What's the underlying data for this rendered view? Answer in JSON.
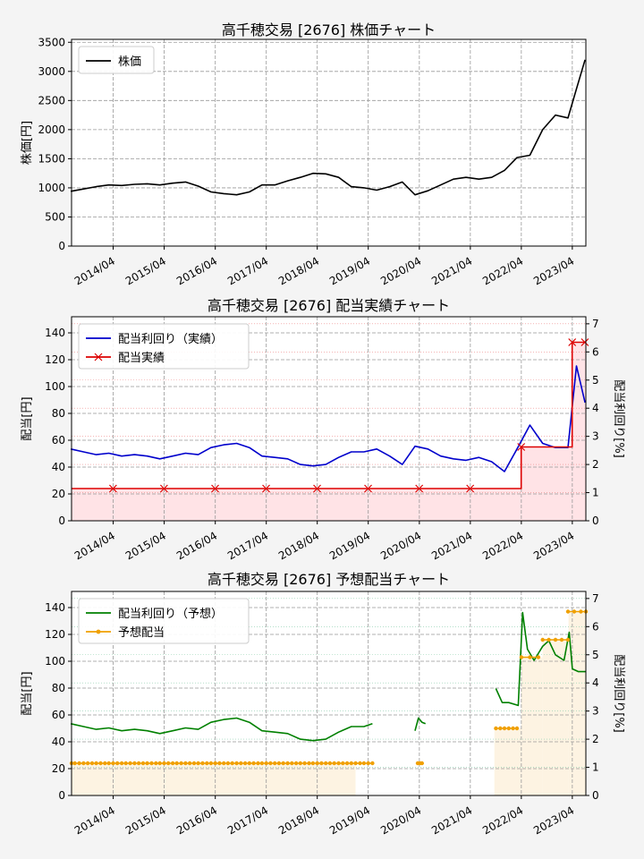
{
  "chart_data": [
    {
      "type": "line",
      "title": "高千穂交易 [2676]  株価チャート",
      "ylabel": "株価[円]",
      "ylim": [
        0,
        3550
      ],
      "yticks": [
        0,
        500,
        1000,
        1500,
        2000,
        2500,
        3000,
        3500
      ],
      "xlim": [
        "2013-06-07",
        "2023-07-07"
      ],
      "xticks": [
        "2014/04",
        "2015/04",
        "2016/04",
        "2017/04",
        "2018/04",
        "2019/04",
        "2020/04",
        "2021/04",
        "2022/04",
        "2023/04"
      ],
      "legend": {
        "position": "top-left",
        "entries": [
          "株価"
        ]
      },
      "grid": true,
      "series": [
        {
          "name": "株価",
          "color": "#000000",
          "x": [
            "2013-06",
            "2013-09",
            "2013-12",
            "2014-03",
            "2014-06",
            "2014-09",
            "2014-12",
            "2015-03",
            "2015-06",
            "2015-09",
            "2015-12",
            "2016-03",
            "2016-06",
            "2016-09",
            "2016-12",
            "2017-03",
            "2017-06",
            "2017-09",
            "2017-12",
            "2018-03",
            "2018-06",
            "2018-09",
            "2018-12",
            "2019-03",
            "2019-06",
            "2019-09",
            "2019-12",
            "2020-03",
            "2020-06",
            "2020-09",
            "2020-12",
            "2021-03",
            "2021-06",
            "2021-09",
            "2021-12",
            "2022-03",
            "2022-06",
            "2022-09",
            "2022-12",
            "2023-03",
            "2023-05",
            "2023-07"
          ],
          "y": [
            940,
            980,
            1020,
            1050,
            1040,
            1060,
            1070,
            1050,
            1080,
            1100,
            1030,
            930,
            900,
            880,
            930,
            1050,
            1050,
            1120,
            1180,
            1250,
            1240,
            1180,
            1020,
            1000,
            960,
            1020,
            1100,
            880,
            950,
            1050,
            1150,
            1180,
            1150,
            1180,
            1300,
            1520,
            1560,
            2000,
            2250,
            2200,
            2700,
            3200
          ]
        }
      ]
    },
    {
      "type": "line",
      "title": "高千穂交易 [2676]  配当実績チャート",
      "ylabel": "配当[円]",
      "y2label": "配当利回り[%]",
      "ylim": [
        0,
        152
      ],
      "yticks": [
        0,
        20,
        40,
        60,
        80,
        100,
        120,
        140
      ],
      "y2lim": [
        0,
        7.25
      ],
      "y2ticks": [
        0,
        1,
        2,
        3,
        4,
        5,
        6,
        7
      ],
      "xlim": [
        "2013-06-07",
        "2023-07-07"
      ],
      "xticks": [
        "2014/04",
        "2015/04",
        "2016/04",
        "2017/04",
        "2018/04",
        "2019/04",
        "2020/04",
        "2021/04",
        "2022/04",
        "2023/04"
      ],
      "legend": {
        "position": "top-left",
        "entries": [
          "配当利回り（実績）",
          "配当実績"
        ]
      },
      "grid": true,
      "series": [
        {
          "name": "配当利回り（実績）",
          "color": "#0000cc",
          "axis": "right",
          "x": [
            "2013-06",
            "2013-09",
            "2013-12",
            "2014-03",
            "2014-06",
            "2014-09",
            "2014-12",
            "2015-03",
            "2015-06",
            "2015-09",
            "2015-12",
            "2016-03",
            "2016-06",
            "2016-09",
            "2016-12",
            "2017-03",
            "2017-06",
            "2017-09",
            "2017-12",
            "2018-03",
            "2018-06",
            "2018-09",
            "2018-12",
            "2019-03",
            "2019-06",
            "2019-09",
            "2019-12",
            "2020-03",
            "2020-06",
            "2020-09",
            "2020-12",
            "2021-03",
            "2021-06",
            "2021-09",
            "2021-12",
            "2022-03",
            "2022-06",
            "2022-09",
            "2022-12",
            "2023-03",
            "2023-05",
            "2023-07"
          ],
          "y": [
            2.55,
            2.45,
            2.35,
            2.4,
            2.3,
            2.35,
            2.3,
            2.2,
            2.3,
            2.4,
            2.35,
            2.6,
            2.7,
            2.75,
            2.6,
            2.3,
            2.25,
            2.2,
            2.0,
            1.95,
            2.0,
            2.25,
            2.45,
            2.45,
            2.55,
            2.3,
            2.0,
            2.65,
            2.55,
            2.3,
            2.2,
            2.15,
            2.25,
            2.1,
            1.75,
            2.55,
            3.4,
            2.75,
            2.6,
            2.6,
            5.5,
            4.2
          ]
        },
        {
          "name": "配当実績",
          "color": "#dd0000",
          "axis": "left",
          "step": true,
          "x": [
            "2013-06-07",
            "2014-03-31",
            "2015-03-31",
            "2016-03-31",
            "2017-03-31",
            "2018-03-31",
            "2019-03-31",
            "2020-03-31",
            "2021-03-31",
            "2022-03-31",
            "2023-03-31",
            "2023-07-07"
          ],
          "y": [
            24,
            24,
            24,
            24,
            24,
            24,
            24,
            24,
            24,
            55,
            133,
            133
          ],
          "markers_x": [
            "2014-03-31",
            "2015-03-31",
            "2016-03-31",
            "2017-03-31",
            "2018-03-31",
            "2019-03-31",
            "2020-03-31",
            "2021-03-31",
            "2022-03-31",
            "2023-03-31",
            "2023-06-30"
          ],
          "markers_y": [
            24,
            24,
            24,
            24,
            24,
            24,
            24,
            24,
            55,
            133,
            133
          ]
        }
      ]
    },
    {
      "type": "line",
      "title": "高千穂交易 [2676]  予想配当チャート",
      "ylabel": "配当[円]",
      "y2label": "配当利回り[%]",
      "ylim": [
        0,
        152
      ],
      "yticks": [
        0,
        20,
        40,
        60,
        80,
        100,
        120,
        140
      ],
      "y2lim": [
        0,
        7.25
      ],
      "y2ticks": [
        0,
        1,
        2,
        3,
        4,
        5,
        6,
        7
      ],
      "xlim": [
        "2013-06-07",
        "2023-07-07"
      ],
      "xticks": [
        "2014/04",
        "2015/04",
        "2016/04",
        "2017/04",
        "2018/04",
        "2019/04",
        "2020/04",
        "2021/04",
        "2022/04",
        "2023/04"
      ],
      "legend": {
        "position": "top-left",
        "entries": [
          "配当利回り（予想）",
          "予想配当"
        ]
      },
      "grid": true,
      "series": [
        {
          "name": "配当利回り（予想）",
          "color": "#008000",
          "axis": "right",
          "segments": [
            {
              "x": [
                "2013-06",
                "2013-09",
                "2013-12",
                "2014-03",
                "2014-06",
                "2014-09",
                "2014-12",
                "2015-03",
                "2015-06",
                "2015-09",
                "2015-12",
                "2016-03",
                "2016-06",
                "2016-09",
                "2016-12",
                "2017-03",
                "2017-06",
                "2017-09",
                "2017-12",
                "2018-03",
                "2018-06",
                "2018-09",
                "2018-12",
                "2019-03",
                "2019-05"
              ],
              "y": [
                2.55,
                2.45,
                2.35,
                2.4,
                2.3,
                2.35,
                2.3,
                2.2,
                2.3,
                2.4,
                2.35,
                2.6,
                2.7,
                2.75,
                2.6,
                2.3,
                2.25,
                2.2,
                2.0,
                1.95,
                2.0,
                2.25,
                2.45,
                2.45,
                2.55
              ]
            },
            {
              "x": [
                "2020-03-01",
                "2020-03-25",
                "2020-04-20",
                "2020-05-15"
              ],
              "y": [
                2.3,
                2.75,
                2.6,
                2.55
              ]
            },
            {
              "x": [
                "2021-10-01",
                "2021-11-15",
                "2022-01-01",
                "2022-03-10",
                "2022-04-10",
                "2022-05-15",
                "2022-07-01",
                "2022-09-01",
                "2022-10-15",
                "2022-12-01",
                "2023-02-01",
                "2023-03-10",
                "2023-04-01",
                "2023-05-15",
                "2023-07-07"
              ],
              "y": [
                3.8,
                3.3,
                3.3,
                3.2,
                6.5,
                5.2,
                4.8,
                5.3,
                5.5,
                5.0,
                4.8,
                5.8,
                4.5,
                4.4,
                4.4
              ]
            }
          ]
        },
        {
          "name": "予想配当",
          "color": "#f0a000",
          "axis": "left",
          "step": true,
          "segments": [
            {
              "x": [
                "2013-06-07",
                "2013-07-01",
                "2013-08-01",
                "2013-09-01",
                "2013-10-01",
                "2013-11-01",
                "2013-12-01",
                "2014-01-01",
                "2014-02-01",
                "2014-03-01",
                "2014-04-01",
                "2014-05-01",
                "2014-06-01",
                "2014-07-01",
                "2014-08-01",
                "2014-09-01",
                "2014-10-01",
                "2014-11-01",
                "2014-12-01",
                "2015-01-01",
                "2015-02-01",
                "2015-03-01",
                "2015-04-01",
                "2015-05-01",
                "2015-06-01",
                "2015-07-01",
                "2015-08-01",
                "2015-09-01",
                "2015-10-01",
                "2015-11-01",
                "2015-12-01",
                "2016-01-01",
                "2016-02-01",
                "2016-03-01",
                "2016-04-01",
                "2016-05-01",
                "2016-06-01",
                "2016-07-01",
                "2016-08-01",
                "2016-09-01",
                "2016-10-01",
                "2016-11-01",
                "2016-12-01",
                "2017-01-01",
                "2017-02-01",
                "2017-03-01",
                "2017-04-01",
                "2017-05-01",
                "2017-06-01",
                "2017-07-01",
                "2017-08-01",
                "2017-09-01",
                "2017-10-01",
                "2017-11-01",
                "2017-12-01",
                "2018-01-01",
                "2018-02-01",
                "2018-03-01",
                "2018-04-01",
                "2018-05-01",
                "2018-06-01",
                "2018-07-01",
                "2018-08-01",
                "2018-09-01",
                "2018-10-01",
                "2018-11-01",
                "2018-12-01",
                "2019-01-01",
                "2019-02-01",
                "2019-03-01",
                "2019-04-01",
                "2019-05-01"
              ],
              "y": 24
            },
            {
              "x": [
                "2020-03-20",
                "2020-04-05",
                "2020-04-20"
              ],
              "y": [
                24,
                24,
                24
              ]
            },
            {
              "x": [
                "2021-10-01",
                "2021-11-01",
                "2021-12-01",
                "2022-01-01",
                "2022-02-01",
                "2022-03-01"
              ],
              "y": [
                50,
                50,
                50,
                50,
                50,
                50
              ]
            },
            {
              "x": [
                "2022-04-01",
                "2022-06-01",
                "2022-08-01"
              ],
              "y": [
                103,
                103,
                103
              ]
            },
            {
              "x": [
                "2022-09-01",
                "2022-10-15",
                "2022-12-01",
                "2023-01-15",
                "2023-03-01"
              ],
              "y": [
                116,
                116,
                116,
                116,
                116
              ]
            },
            {
              "x": [
                "2023-03-01",
                "2023-04-15",
                "2023-06-01",
                "2023-07-07"
              ],
              "y": [
                137,
                137,
                137,
                137
              ]
            }
          ],
          "fill_regions": [
            {
              "from": "2013-06-07",
              "to": "2018-12-31",
              "y": 24
            },
            {
              "from": "2021-09-20",
              "to": "2022-03-31",
              "y": 50
            },
            {
              "from": "2022-03-31",
              "to": "2022-08-31",
              "y": 103
            },
            {
              "from": "2022-08-31",
              "to": "2023-03-05",
              "y": 116
            },
            {
              "from": "2023-03-05",
              "to": "2023-07-07",
              "y": 137
            }
          ]
        }
      ]
    }
  ]
}
